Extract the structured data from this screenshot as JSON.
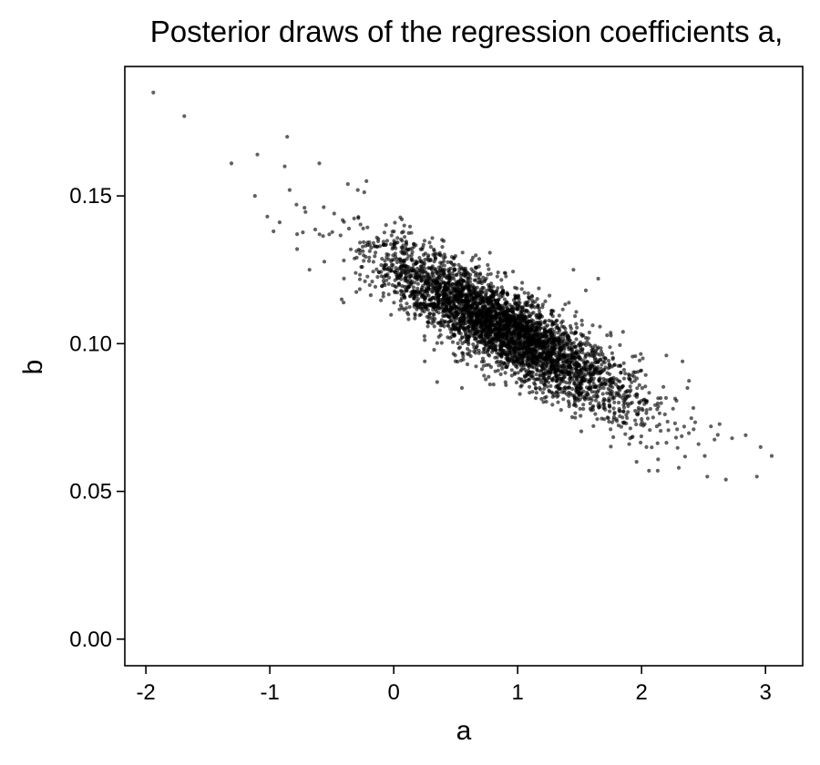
{
  "chart_data": {
    "type": "scatter",
    "title": "Posterior draws of the regression coefficients a,",
    "xlabel": "a",
    "ylabel": "b",
    "xlim": [
      -2.17,
      3.3
    ],
    "ylim": [
      -0.009,
      0.1938
    ],
    "x_ticks": [
      {
        "value": -2,
        "label": "-2"
      },
      {
        "value": -1,
        "label": "-1"
      },
      {
        "value": 0,
        "label": "0"
      },
      {
        "value": 1,
        "label": "1"
      },
      {
        "value": 2,
        "label": "2"
      },
      {
        "value": 3,
        "label": "3"
      }
    ],
    "y_ticks": [
      {
        "value": 0.0,
        "label": "0.00"
      },
      {
        "value": 0.05,
        "label": "0.05"
      },
      {
        "value": 0.1,
        "label": "0.10"
      },
      {
        "value": 0.15,
        "label": "0.15"
      }
    ],
    "grid": false,
    "point_color": "#000000",
    "series": [
      {
        "num_draws": 4000,
        "mean": [
          0.9,
          0.105
        ],
        "sd": [
          0.5,
          0.0133
        ],
        "correlation": -0.85,
        "highlighted_points": [
          [
            -1.94,
            0.185
          ],
          [
            -1.69,
            0.177
          ],
          [
            -1.31,
            0.161
          ],
          [
            -1.1,
            0.164
          ],
          [
            -0.86,
            0.17
          ],
          [
            -0.88,
            0.16
          ],
          [
            -0.6,
            0.161
          ],
          [
            -0.84,
            0.152
          ],
          [
            -0.37,
            0.154
          ],
          [
            -0.22,
            0.155
          ],
          [
            -0.29,
            0.152
          ],
          [
            2.84,
            0.069
          ],
          [
            2.96,
            0.065
          ],
          [
            3.05,
            0.062
          ],
          [
            2.93,
            0.055
          ],
          [
            2.68,
            0.054
          ],
          [
            2.53,
            0.055
          ],
          [
            2.3,
            0.058
          ],
          [
            2.13,
            0.057
          ],
          [
            2.06,
            0.057
          ],
          [
            2.46,
            0.066
          ],
          [
            2.42,
            0.071
          ],
          [
            2.56,
            0.072
          ],
          [
            2.27,
            0.073
          ],
          [
            2.51,
            0.062
          ],
          [
            2.73,
            0.068
          ],
          [
            2.37,
            0.085
          ],
          [
            1.96,
            0.06
          ],
          [
            -1.12,
            0.15
          ],
          [
            -1.02,
            0.143
          ],
          [
            -0.97,
            0.138
          ],
          [
            -0.72,
            0.146
          ],
          [
            -0.78,
            0.132
          ],
          [
            -0.68,
            0.125
          ],
          [
            -0.52,
            0.137
          ],
          [
            -0.42,
            0.115
          ],
          [
            0.1,
            0.112
          ],
          [
            0.25,
            0.094
          ],
          [
            0.35,
            0.087
          ],
          [
            0.55,
            0.085
          ],
          [
            1.45,
            0.125
          ],
          [
            1.65,
            0.122
          ],
          [
            1.55,
            0.118
          ],
          [
            1.85,
            0.104
          ],
          [
            2.2,
            0.096
          ],
          [
            2.33,
            0.094
          ],
          [
            1.75,
            0.071
          ],
          [
            1.9,
            0.066
          ]
        ]
      }
    ]
  }
}
